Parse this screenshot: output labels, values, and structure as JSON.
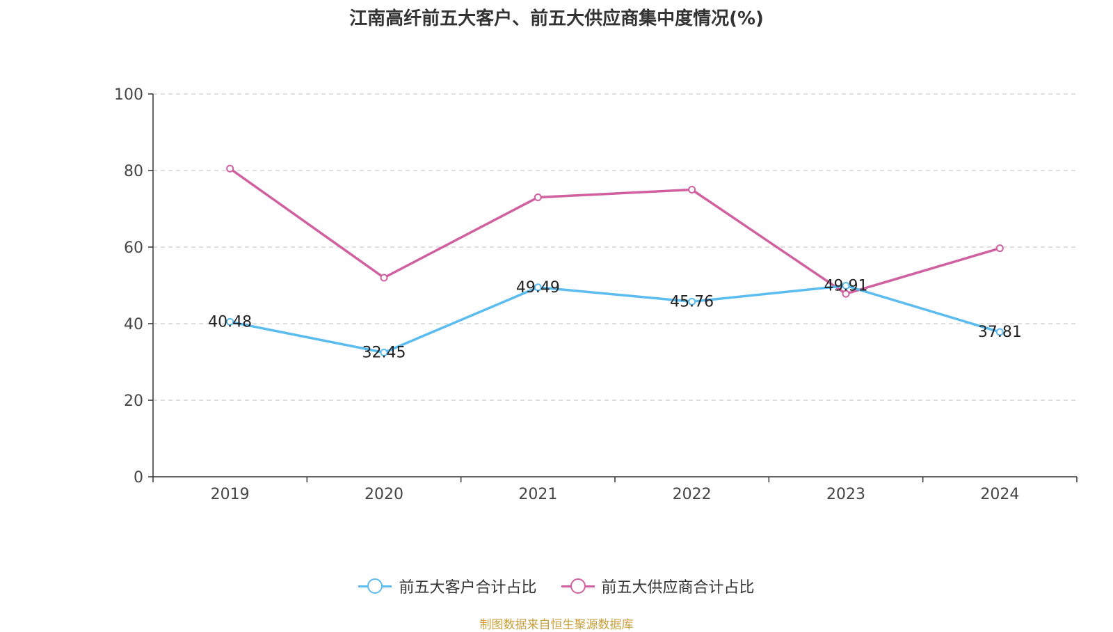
{
  "chart_data": {
    "type": "line",
    "title": "江南高纤前五大客户、前五大供应商集中度情况(%)",
    "categories": [
      "2019",
      "2020",
      "2021",
      "2022",
      "2023",
      "2024"
    ],
    "ylim": [
      0,
      100
    ],
    "yticks": [
      0,
      20,
      40,
      60,
      80,
      100
    ],
    "ytick_labels": [
      "0",
      "20",
      "40",
      "60",
      "80",
      "100"
    ],
    "grid": true,
    "legend_position": "bottom-center",
    "series": [
      {
        "name": "前五大客户合计占比",
        "color": "#5bbcf0",
        "values": [
          40.48,
          32.45,
          49.49,
          45.76,
          49.91,
          37.81
        ],
        "data_labels": [
          "40.48",
          "32.45",
          "49.49",
          "45.76",
          "49.91",
          "37.81"
        ]
      },
      {
        "name": "前五大供应商合计占比",
        "color": "#d0609f",
        "values": [
          80.5,
          52.0,
          73.0,
          75.0,
          47.8,
          59.7
        ]
      }
    ],
    "source": "制图数据来自恒生聚源数据库"
  }
}
